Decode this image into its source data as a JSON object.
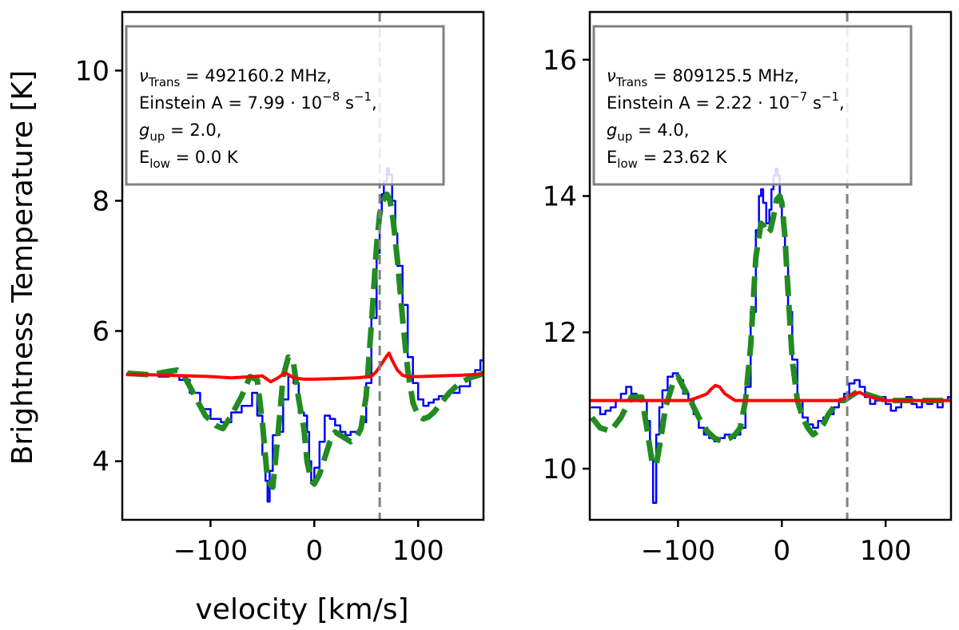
{
  "figure": {
    "ylabel": "Brightness Temperature [K]",
    "xlabel": "velocity [km/s]"
  },
  "chart_data": [
    {
      "type": "line",
      "panel": "left",
      "xlabel": "velocity [km/s]",
      "ylabel": "Brightness Temperature [K]",
      "xlim": [
        -185,
        163
      ],
      "ylim": [
        3.1,
        10.9
      ],
      "xticks": [
        -100,
        0,
        100
      ],
      "xtick_labels": [
        "−100",
        "0",
        "100"
      ],
      "yticks": [
        4,
        6,
        8,
        10
      ],
      "ytick_labels": [
        "4",
        "6",
        "8",
        "10"
      ],
      "grid": false,
      "vline_x": 63,
      "annotation": {
        "freq_sym": "ν",
        "freq_sub": "Trans",
        "freq_val": " = 492160.2 MHz,",
        "einA_label": "Einstein A = 7.99 · 10",
        "einA_exp": "−8",
        "einA_unit": " s",
        "einA_unit_exp": "−1",
        "einA_end": ",",
        "gup_sym": "g",
        "gup_sub": "up",
        "gup_val": " = 2.0,",
        "elow_sym": "E",
        "elow_sub": "low",
        "elow_val": " = 0.0 K"
      },
      "series": [
        {
          "color": "#0000ff",
          "style": "step",
          "width": 2.5,
          "x": [
            -180,
            -170,
            -160,
            -150,
            -140,
            -130,
            -120,
            -110,
            -100,
            -90,
            -80,
            -70,
            -60,
            -55,
            -50,
            -47,
            -45,
            -43,
            -40,
            -35,
            -30,
            -25,
            -20,
            -15,
            -10,
            -7,
            -5,
            -3,
            0,
            5,
            10,
            15,
            20,
            25,
            30,
            35,
            40,
            45,
            50,
            55,
            60,
            63,
            65,
            67,
            70,
            72,
            75,
            78,
            80,
            85,
            90,
            95,
            100,
            105,
            110,
            115,
            120,
            130,
            140,
            150,
            155,
            160,
            163
          ],
          "y": [
            5.35,
            5.33,
            5.32,
            5.3,
            5.31,
            5.25,
            5.05,
            4.8,
            4.65,
            4.6,
            4.75,
            4.85,
            5.05,
            4.7,
            4.1,
            3.7,
            3.38,
            3.85,
            4.4,
            4.45,
            4.95,
            5.3,
            5.2,
            4.75,
            4.7,
            4.45,
            4.0,
            3.7,
            3.9,
            4.3,
            4.7,
            4.65,
            4.55,
            4.45,
            4.4,
            4.45,
            4.45,
            4.6,
            5.2,
            6.2,
            7.2,
            7.8,
            8.1,
            8.3,
            8.5,
            8.4,
            8.0,
            7.5,
            7.0,
            6.4,
            5.6,
            5.2,
            4.95,
            4.85,
            4.9,
            4.95,
            5.0,
            5.05,
            5.15,
            5.3,
            5.4,
            5.55,
            5.7
          ]
        },
        {
          "color": "#228b22",
          "style": "dashed",
          "width": 7,
          "x": [
            -180,
            -170,
            -160,
            -150,
            -140,
            -132,
            -125,
            -115,
            -105,
            -95,
            -88,
            -80,
            -70,
            -62,
            -55,
            -50,
            -45,
            -40,
            -35,
            -30,
            -25,
            -20,
            -15,
            -10,
            -7,
            -3,
            0,
            5,
            10,
            15,
            20,
            25,
            30,
            35,
            40,
            45,
            50,
            55,
            60,
            63,
            66,
            70,
            73,
            76,
            80,
            85,
            90,
            95,
            100,
            105,
            110,
            115,
            120,
            130,
            140,
            150,
            160,
            163
          ],
          "y": [
            5.35,
            5.34,
            5.33,
            5.35,
            5.38,
            5.4,
            5.3,
            5.0,
            4.7,
            4.55,
            4.5,
            4.7,
            5.0,
            5.3,
            5.25,
            4.6,
            3.7,
            3.6,
            4.4,
            5.3,
            5.6,
            5.5,
            4.95,
            4.5,
            4.0,
            3.7,
            3.65,
            3.8,
            4.05,
            4.3,
            4.45,
            4.4,
            4.35,
            4.3,
            4.35,
            4.5,
            5.0,
            6.1,
            7.3,
            7.8,
            8.0,
            8.1,
            8.0,
            7.7,
            7.1,
            6.2,
            5.4,
            4.9,
            4.7,
            4.65,
            4.68,
            4.75,
            4.85,
            5.05,
            5.2,
            5.28,
            5.33,
            5.35
          ]
        },
        {
          "color": "#ff0000",
          "style": "solid",
          "width": 4,
          "x": [
            -180,
            -160,
            -140,
            -120,
            -100,
            -80,
            -60,
            -50,
            -42,
            -35,
            -28,
            -20,
            -10,
            0,
            20,
            40,
            55,
            60,
            65,
            70,
            72,
            75,
            80,
            85,
            90,
            100,
            120,
            140,
            163
          ],
          "y": [
            5.33,
            5.33,
            5.32,
            5.31,
            5.3,
            5.28,
            5.3,
            5.31,
            5.22,
            5.28,
            5.36,
            5.28,
            5.26,
            5.26,
            5.27,
            5.28,
            5.3,
            5.38,
            5.5,
            5.62,
            5.66,
            5.55,
            5.4,
            5.32,
            5.3,
            5.3,
            5.31,
            5.32,
            5.34
          ]
        }
      ]
    },
    {
      "type": "line",
      "panel": "right",
      "xlim": [
        -185,
        163
      ],
      "ylim": [
        9.25,
        16.7
      ],
      "xticks": [
        -100,
        0,
        100
      ],
      "xtick_labels": [
        "−100",
        "0",
        "100"
      ],
      "yticks": [
        10,
        12,
        14,
        16
      ],
      "ytick_labels": [
        "10",
        "12",
        "14",
        "16"
      ],
      "grid": false,
      "vline_x": 63,
      "annotation": {
        "freq_sym": "ν",
        "freq_sub": "Trans",
        "freq_val": " = 809125.5 MHz,",
        "einA_label": "Einstein A = 2.22 · 10",
        "einA_exp": "−7",
        "einA_unit": " s",
        "einA_unit_exp": "−1",
        "einA_end": ",",
        "gup_sym": "g",
        "gup_sub": "up",
        "gup_val": " = 4.0,",
        "elow_sym": "E",
        "elow_sub": "low",
        "elow_val": " = 23.62 K"
      },
      "series": [
        {
          "color": "#0000ff",
          "style": "step",
          "width": 2.5,
          "x": [
            -183,
            -175,
            -170,
            -165,
            -160,
            -155,
            -150,
            -145,
            -140,
            -135,
            -130,
            -127,
            -124,
            -121,
            -118,
            -115,
            -110,
            -105,
            -100,
            -95,
            -90,
            -85,
            -80,
            -75,
            -70,
            -65,
            -60,
            -55,
            -50,
            -45,
            -40,
            -35,
            -30,
            -25,
            -22,
            -20,
            -18,
            -15,
            -12,
            -10,
            -8,
            -6,
            -4,
            -2,
            0,
            3,
            6,
            10,
            15,
            20,
            25,
            30,
            35,
            40,
            45,
            50,
            55,
            60,
            65,
            70,
            75,
            80,
            85,
            90,
            95,
            100,
            105,
            110,
            115,
            120,
            125,
            130,
            135,
            140,
            145,
            150,
            155,
            160,
            163
          ],
          "y": [
            10.9,
            10.8,
            10.85,
            10.9,
            11.0,
            11.1,
            11.2,
            11.1,
            11.0,
            11.0,
            10.7,
            10.2,
            9.5,
            10.5,
            10.9,
            11.15,
            11.35,
            11.4,
            11.3,
            11.1,
            11.0,
            10.8,
            10.6,
            10.5,
            10.45,
            10.4,
            10.45,
            10.5,
            10.45,
            10.5,
            10.6,
            11.2,
            12.3,
            13.5,
            14.0,
            14.1,
            13.9,
            13.6,
            13.8,
            14.1,
            14.3,
            14.4,
            14.3,
            14.0,
            13.6,
            13.0,
            12.3,
            11.6,
            11.0,
            10.75,
            10.65,
            10.6,
            10.7,
            10.75,
            10.8,
            10.9,
            11.0,
            11.1,
            11.25,
            11.3,
            11.2,
            11.05,
            10.95,
            11.0,
            11.05,
            10.95,
            10.85,
            10.9,
            11.0,
            11.05,
            10.95,
            10.9,
            11.0,
            10.95,
            11.0,
            10.9,
            11.0,
            11.05,
            11.0
          ]
        },
        {
          "color": "#228b22",
          "style": "dashed",
          "width": 7,
          "x": [
            -183,
            -175,
            -165,
            -155,
            -145,
            -135,
            -130,
            -125,
            -121,
            -117,
            -112,
            -105,
            -100,
            -95,
            -88,
            -80,
            -72,
            -65,
            -58,
            -50,
            -45,
            -40,
            -35,
            -30,
            -25,
            -20,
            -17,
            -14,
            -11,
            -8,
            -5,
            -2,
            0,
            3,
            6,
            10,
            15,
            20,
            25,
            30,
            35,
            40,
            45,
            50,
            55,
            60,
            65,
            70,
            75,
            80,
            90,
            100,
            110,
            120,
            130,
            140,
            150,
            160,
            163
          ],
          "y": [
            10.75,
            10.6,
            10.55,
            10.75,
            11.05,
            11.05,
            10.6,
            10.1,
            10.05,
            10.4,
            10.9,
            11.25,
            11.35,
            11.2,
            11.0,
            10.75,
            10.55,
            10.45,
            10.4,
            10.45,
            10.5,
            10.6,
            11.0,
            11.8,
            13.1,
            13.6,
            13.55,
            13.45,
            13.5,
            13.7,
            13.95,
            14.0,
            13.9,
            13.4,
            12.6,
            11.6,
            11.0,
            10.75,
            10.6,
            10.5,
            10.55,
            10.65,
            10.8,
            10.9,
            11.0,
            11.0,
            11.05,
            11.1,
            11.15,
            11.1,
            11.05,
            11.0,
            11.0,
            11.0,
            11.0,
            11.0,
            11.0,
            11.0,
            11.0
          ]
        },
        {
          "color": "#ff0000",
          "style": "solid",
          "width": 4,
          "x": [
            -183,
            -160,
            -140,
            -120,
            -100,
            -90,
            -80,
            -72,
            -68,
            -64,
            -60,
            -55,
            -50,
            -45,
            -40,
            -30,
            -20,
            0,
            20,
            40,
            55,
            60,
            65,
            70,
            75,
            80,
            90,
            100,
            120,
            140,
            163
          ],
          "y": [
            11.0,
            11.0,
            11.0,
            11.0,
            11.0,
            11.0,
            11.05,
            11.1,
            11.17,
            11.22,
            11.2,
            11.1,
            11.05,
            11.0,
            11.0,
            11.0,
            11.0,
            11.0,
            11.0,
            11.0,
            11.0,
            11.03,
            11.07,
            11.1,
            11.12,
            11.08,
            11.03,
            11.0,
            11.0,
            11.0,
            11.0
          ]
        }
      ]
    }
  ]
}
